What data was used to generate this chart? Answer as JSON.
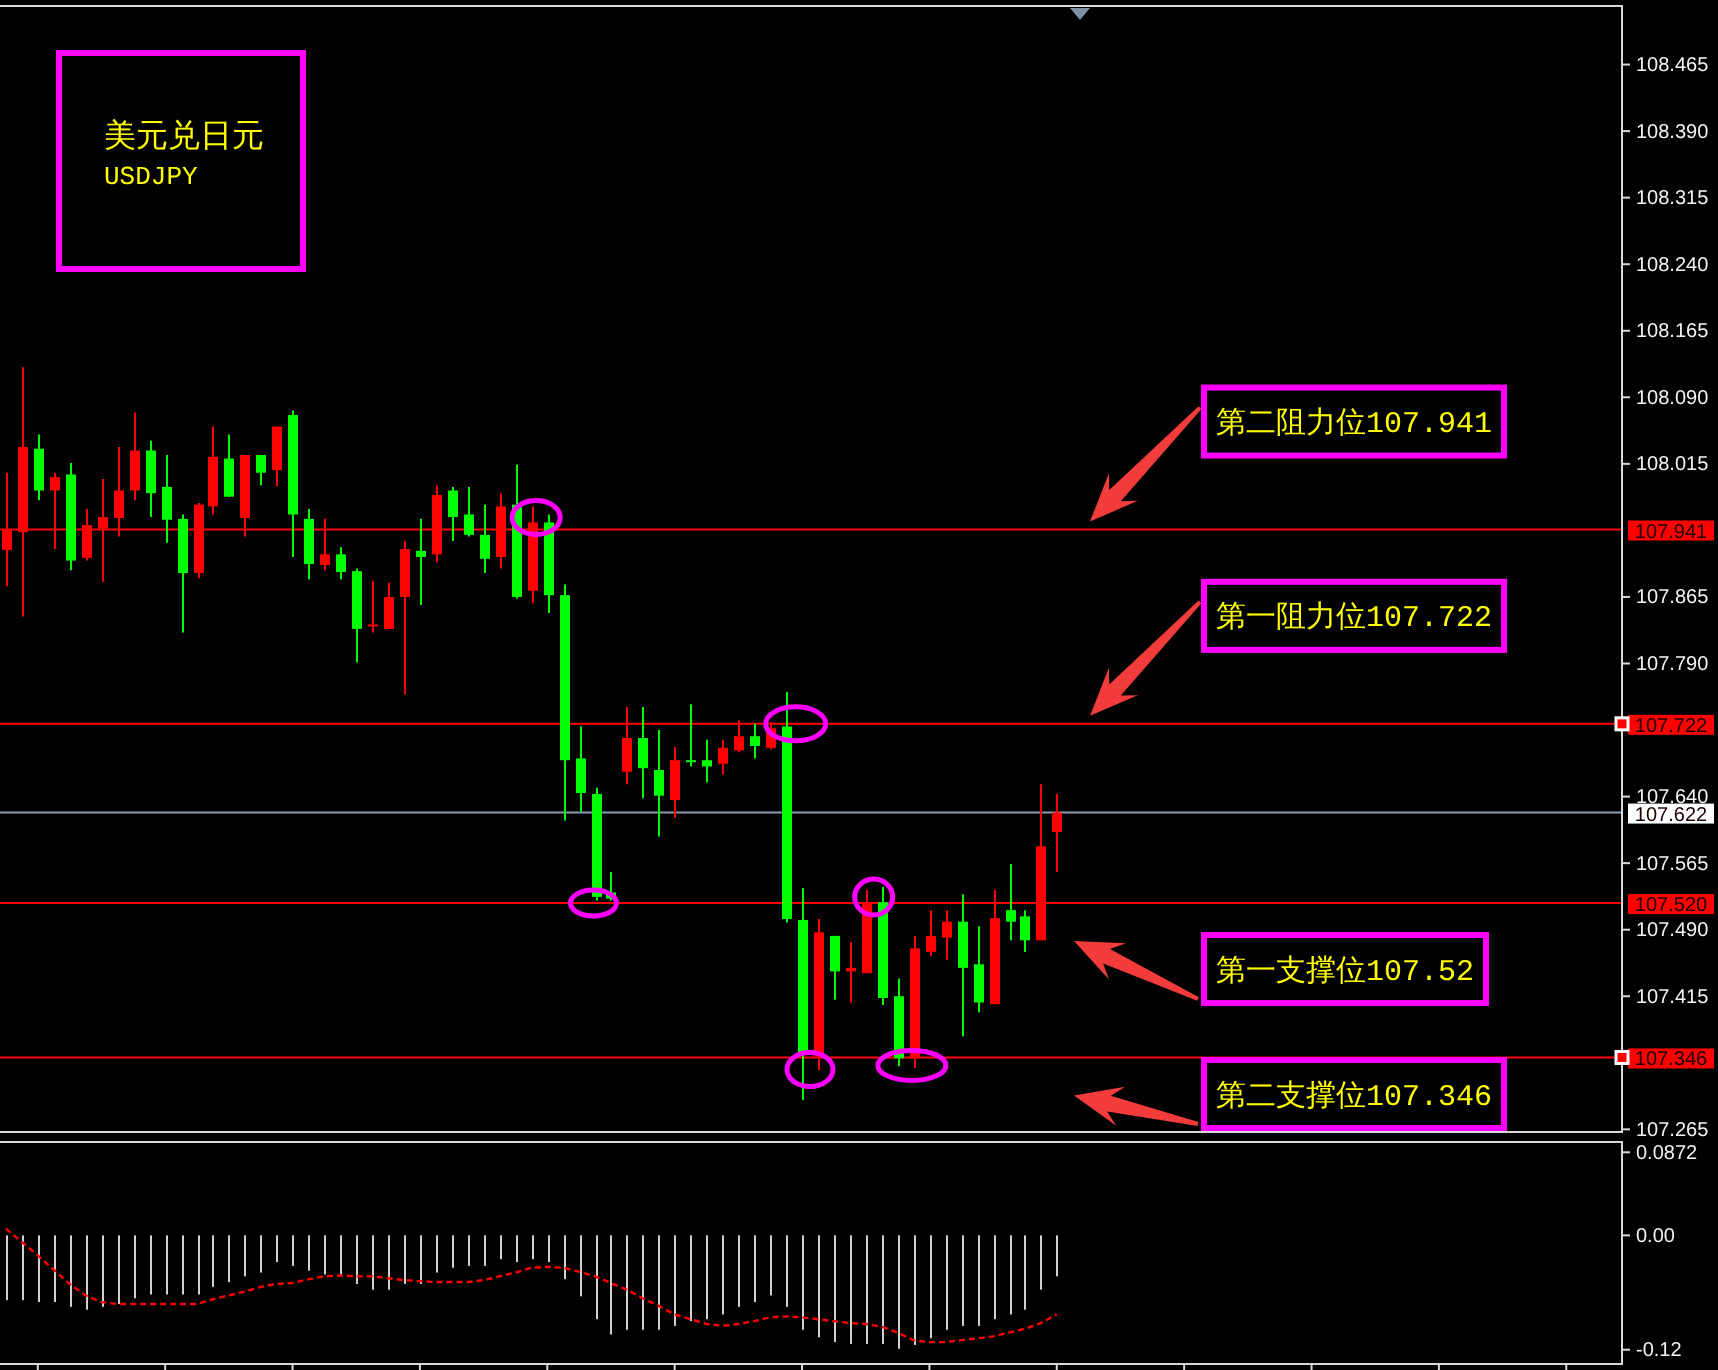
{
  "chart_data": [
    {
      "type": "candlestick",
      "title": "美元兑日元",
      "subtitle": "USDJPY",
      "categories": [
        null,
        null,
        null,
        null,
        null,
        null,
        null,
        null,
        null,
        null,
        null,
        null,
        null,
        null,
        null,
        null,
        null,
        null,
        null,
        null,
        null,
        null,
        null,
        null,
        null,
        null,
        null,
        null,
        null,
        null,
        null,
        null,
        null,
        null,
        null,
        null,
        null,
        null,
        null,
        null,
        null,
        null,
        null,
        null,
        null,
        null,
        null,
        null,
        null,
        null,
        null,
        null,
        null,
        null,
        null,
        null,
        null,
        null,
        null,
        null,
        null,
        null,
        null,
        null,
        null,
        null,
        null,
        null,
        null,
        null,
        null,
        null,
        null,
        null,
        null,
        null,
        null,
        null,
        null,
        null,
        null,
        null,
        null,
        null,
        null,
        null,
        null,
        null,
        null,
        null,
        null,
        null,
        null,
        null,
        null,
        null,
        null,
        null,
        null,
        null,
        null,
        null
      ],
      "ohlc": [
        [
          107.918,
          108.005,
          107.877,
          107.941
        ],
        [
          107.938,
          108.124,
          107.843,
          108.034
        ],
        [
          108.032,
          108.048,
          107.974,
          107.985
        ],
        [
          107.985,
          108.005,
          107.919,
          108.0
        ],
        [
          108.003,
          108.016,
          107.895,
          107.906
        ],
        [
          107.909,
          107.964,
          107.906,
          107.946
        ],
        [
          107.942,
          107.998,
          107.882,
          107.955
        ],
        [
          107.954,
          108.034,
          107.933,
          107.985
        ],
        [
          107.985,
          108.073,
          107.974,
          108.03
        ],
        [
          108.03,
          108.041,
          107.955,
          107.982
        ],
        [
          107.989,
          108.025,
          107.926,
          107.952
        ],
        [
          107.953,
          107.958,
          107.825,
          107.892
        ],
        [
          107.892,
          107.971,
          107.886,
          107.969
        ],
        [
          107.967,
          108.057,
          107.958,
          108.023
        ],
        [
          108.021,
          108.048,
          107.978,
          107.978
        ],
        [
          107.954,
          108.025,
          107.933,
          108.025
        ],
        [
          108.025,
          108.025,
          107.991,
          108.005
        ],
        [
          108.008,
          108.057,
          107.99,
          108.057
        ],
        [
          108.07,
          108.075,
          107.91,
          107.958
        ],
        [
          107.953,
          107.964,
          107.885,
          107.902
        ],
        [
          107.901,
          107.953,
          107.895,
          107.913
        ],
        [
          107.913,
          107.921,
          107.885,
          107.893
        ],
        [
          107.894,
          107.897,
          107.791,
          107.829
        ],
        [
          107.832,
          107.883,
          107.825,
          107.834
        ],
        [
          107.829,
          107.881,
          107.829,
          107.865
        ],
        [
          107.865,
          107.928,
          107.755,
          107.919
        ],
        [
          107.917,
          107.953,
          107.856,
          107.91
        ],
        [
          107.913,
          107.991,
          107.904,
          107.98
        ],
        [
          107.985,
          107.989,
          107.928,
          107.955
        ],
        [
          107.958,
          107.989,
          107.933,
          107.935
        ],
        [
          107.935,
          107.969,
          107.892,
          107.908
        ],
        [
          107.91,
          107.982,
          107.897,
          107.967
        ],
        [
          107.969,
          108.014,
          107.863,
          107.865
        ],
        [
          107.872,
          107.967,
          107.858,
          107.949
        ],
        [
          107.949,
          107.958,
          107.847,
          107.867
        ],
        [
          107.867,
          107.879,
          107.613,
          107.681
        ],
        [
          107.683,
          107.719,
          107.623,
          107.644
        ],
        [
          107.643,
          107.65,
          107.523,
          107.527
        ],
        [
          107.532,
          107.555,
          107.523,
          107.525
        ],
        [
          107.668,
          107.741,
          107.654,
          107.706
        ],
        [
          107.706,
          107.741,
          107.638,
          107.672
        ],
        [
          107.67,
          107.715,
          107.595,
          107.641
        ],
        [
          107.636,
          107.696,
          107.616,
          107.681
        ],
        [
          107.681,
          107.744,
          107.674,
          107.679
        ],
        [
          107.681,
          107.704,
          107.656,
          107.674
        ],
        [
          107.677,
          107.704,
          107.665,
          107.695
        ],
        [
          107.692,
          107.726,
          107.69,
          107.708
        ],
        [
          107.708,
          107.722,
          107.683,
          107.697
        ],
        [
          107.695,
          107.724,
          107.693,
          107.717
        ],
        [
          107.719,
          107.758,
          107.498,
          107.502
        ],
        [
          107.501,
          107.537,
          107.298,
          107.351
        ],
        [
          107.347,
          107.502,
          107.332,
          107.487
        ],
        [
          107.483,
          107.483,
          107.411,
          107.443
        ],
        [
          107.443,
          107.476,
          107.408,
          107.447
        ],
        [
          107.441,
          107.535,
          107.441,
          107.521
        ],
        [
          107.521,
          107.538,
          107.405,
          107.413
        ],
        [
          107.415,
          107.435,
          107.336,
          107.345
        ],
        [
          107.345,
          107.483,
          107.334,
          107.469
        ],
        [
          107.465,
          107.512,
          107.46,
          107.483
        ],
        [
          107.481,
          107.512,
          107.456,
          107.499
        ],
        [
          107.499,
          107.53,
          107.37,
          107.447
        ],
        [
          107.451,
          107.494,
          107.397,
          107.408
        ],
        [
          107.406,
          107.535,
          107.406,
          107.503
        ],
        [
          107.512,
          107.564,
          107.478,
          107.499
        ],
        [
          107.505,
          107.512,
          107.465,
          107.478
        ],
        [
          107.478,
          107.654,
          107.478,
          107.584
        ],
        [
          107.6,
          107.643,
          107.555,
          107.622
        ],
        null,
        null,
        null,
        null,
        null,
        null,
        null,
        null,
        null,
        null,
        null,
        null,
        null,
        null,
        null,
        null,
        null,
        null,
        null,
        null,
        null,
        null,
        null,
        null,
        null,
        null,
        null,
        null,
        null,
        null,
        null,
        null,
        null,
        null,
        null
      ],
      "colors": [
        "#ff0000",
        "#ff0000",
        "#00ff00",
        "#ff0000",
        "#00ff00",
        "#ff0000",
        "#ff0000",
        "#ff0000",
        "#ff0000",
        "#00ff00",
        "#00ff00",
        "#00ff00",
        "#ff0000",
        "#ff0000",
        "#00ff00",
        "#ff0000",
        "#00ff00",
        "#ff0000",
        "#00ff00",
        "#00ff00",
        "#ff0000",
        "#00ff00",
        "#00ff00",
        "#ff0000",
        "#ff0000",
        "#ff0000",
        "#00ff00",
        "#ff0000",
        "#00ff00",
        "#00ff00",
        "#00ff00",
        "#ff0000",
        "#00ff00",
        "#ff0000",
        "#00ff00",
        "#00ff00",
        "#00ff00",
        "#00ff00",
        "#00ff00",
        "#ff0000",
        "#00ff00",
        "#00ff00",
        "#ff0000",
        "#00ff00",
        "#00ff00",
        "#ff0000",
        "#ff0000",
        "#00ff00",
        "#ff0000",
        "#00ff00",
        "#00ff00",
        "#ff0000",
        "#00ff00",
        "#ff0000",
        "#ff0000",
        "#00ff00",
        "#00ff00",
        "#ff0000",
        "#ff0000",
        "#ff0000",
        "#00ff00",
        "#00ff00",
        "#ff0000",
        "#00ff00",
        "#00ff00",
        "#ff0000",
        "#ff0000",
        null,
        null,
        null,
        null,
        null,
        null,
        null,
        null,
        null,
        null,
        null,
        null,
        null,
        null,
        null,
        null,
        null,
        null,
        null,
        null,
        null,
        null,
        null,
        null,
        null,
        null,
        null,
        null,
        null,
        null,
        null,
        null,
        null,
        null,
        null
      ],
      "ylim": [
        107.262,
        108.531
      ],
      "yticks": [
        108.465,
        {
          "value": 108.39,
          "label": "108.390"
        },
        108.315,
        {
          "value": 108.24,
          "label": "108.240"
        },
        108.165,
        {
          "value": 108.09,
          "label": "108.090"
        },
        108.015,
        107.865,
        {
          "value": 107.79,
          "label": "107.790"
        },
        {
          "value": 107.64,
          "label": "107.640"
        },
        107.565,
        {
          "value": 107.49,
          "label": "107.490"
        },
        107.415,
        107.265
      ],
      "tick_labels": "y",
      "ref_lines": [
        {
          "axis": "y",
          "value": 107.941,
          "label": "107.941",
          "color": "#ff0000"
        },
        {
          "axis": "y",
          "value": 107.722,
          "label": "107.722",
          "color": "#ff0000"
        },
        {
          "axis": "y",
          "value": 107.622,
          "label": "107.622",
          "color": "#8a9bb0"
        },
        {
          "axis": "y",
          "value": 107.52,
          "label": "107.520",
          "color": "#ff0000"
        },
        {
          "axis": "y",
          "value": 107.346,
          "label": "107.346",
          "color": "#ff0000"
        }
      ],
      "annotations": [
        {
          "text": "第二阻力位107.941",
          "y": 107.941
        },
        {
          "text": "第一阻力位107.722",
          "y": 107.722
        },
        {
          "text": "第一支撑位107.52",
          "y": 107.52
        },
        {
          "text": "第二支撑位107.346",
          "y": 107.346
        }
      ]
    },
    {
      "type": "bar",
      "categories": [
        null,
        null,
        null,
        null,
        null,
        null,
        null,
        null,
        null,
        null,
        null,
        null,
        null,
        null,
        null,
        null,
        null,
        null,
        null,
        null,
        null,
        null,
        null,
        null,
        null,
        null,
        null,
        null,
        null,
        null,
        null,
        null,
        null,
        null,
        null,
        null,
        null,
        null,
        null,
        null,
        null,
        null,
        null,
        null,
        null,
        null,
        null,
        null,
        null,
        null,
        null,
        null,
        null,
        null,
        null,
        null,
        null,
        null,
        null,
        null,
        null,
        null,
        null,
        null,
        null,
        null,
        null,
        null,
        null,
        null,
        null,
        null,
        null,
        null,
        null,
        null,
        null,
        null,
        null,
        null,
        null,
        null,
        null,
        null,
        null,
        null,
        null,
        null,
        null,
        null,
        null,
        null,
        null,
        null,
        null,
        null,
        null,
        null,
        null,
        null,
        null,
        null
      ],
      "series": [
        {
          "type": "bar",
          "color": "#d0d0d0",
          "values": [
            -0.068,
            -0.068,
            -0.07,
            -0.07,
            -0.075,
            -0.078,
            -0.075,
            -0.072,
            -0.066,
            -0.062,
            -0.062,
            -0.062,
            -0.062,
            -0.054,
            -0.049,
            -0.043,
            -0.039,
            -0.028,
            -0.032,
            -0.037,
            -0.041,
            -0.041,
            -0.051,
            -0.057,
            -0.057,
            -0.051,
            -0.051,
            -0.039,
            -0.034,
            -0.032,
            -0.032,
            -0.025,
            -0.028,
            -0.025,
            -0.028,
            -0.046,
            -0.064,
            -0.088,
            -0.104,
            -0.099,
            -0.099,
            -0.099,
            -0.095,
            -0.09,
            -0.088,
            -0.083,
            -0.075,
            -0.07,
            -0.063,
            -0.075,
            -0.099,
            -0.107,
            -0.112,
            -0.114,
            -0.114,
            -0.114,
            -0.119,
            -0.115,
            -0.108,
            -0.099,
            -0.095,
            -0.095,
            -0.088,
            -0.083,
            -0.078,
            -0.057,
            -0.043,
            null,
            null,
            null,
            null,
            null,
            null,
            null,
            null,
            null,
            null,
            null,
            null,
            null,
            null,
            null,
            null,
            null,
            null,
            null,
            null,
            null,
            null,
            null,
            null,
            null,
            null,
            null,
            null,
            null,
            null,
            null,
            null,
            null,
            null,
            null
          ]
        },
        {
          "type": "line",
          "color": "#ff0000",
          "line_style": "dashed",
          "values": [
            0.007,
            -0.007,
            -0.021,
            -0.036,
            -0.051,
            -0.063,
            -0.07,
            -0.072,
            -0.072,
            -0.072,
            -0.072,
            -0.072,
            -0.072,
            -0.067,
            -0.063,
            -0.059,
            -0.054,
            -0.051,
            -0.05,
            -0.046,
            -0.043,
            -0.042,
            -0.043,
            -0.043,
            -0.045,
            -0.047,
            -0.048,
            -0.049,
            -0.049,
            -0.049,
            -0.047,
            -0.043,
            -0.039,
            -0.034,
            -0.033,
            -0.034,
            -0.038,
            -0.043,
            -0.05,
            -0.057,
            -0.066,
            -0.074,
            -0.083,
            -0.088,
            -0.093,
            -0.095,
            -0.093,
            -0.09,
            -0.086,
            -0.085,
            -0.086,
            -0.088,
            -0.09,
            -0.092,
            -0.093,
            -0.096,
            -0.102,
            -0.11,
            -0.112,
            -0.112,
            -0.11,
            -0.108,
            -0.106,
            -0.102,
            -0.098,
            -0.092,
            -0.083,
            null,
            null,
            null,
            null,
            null,
            null,
            null,
            null,
            null,
            null,
            null,
            null,
            null,
            null,
            null,
            null,
            null,
            null,
            null,
            null,
            null,
            null,
            null,
            null,
            null,
            null,
            null,
            null,
            null,
            null,
            null,
            null,
            null,
            null,
            null
          ]
        }
      ],
      "ylim": [
        -0.135,
        0.098
      ],
      "yticks": [
        0.0872,
        {
          "value": 0,
          "label": "0.00"
        },
        -0.12
      ],
      "tick_labels": "y"
    }
  ]
}
